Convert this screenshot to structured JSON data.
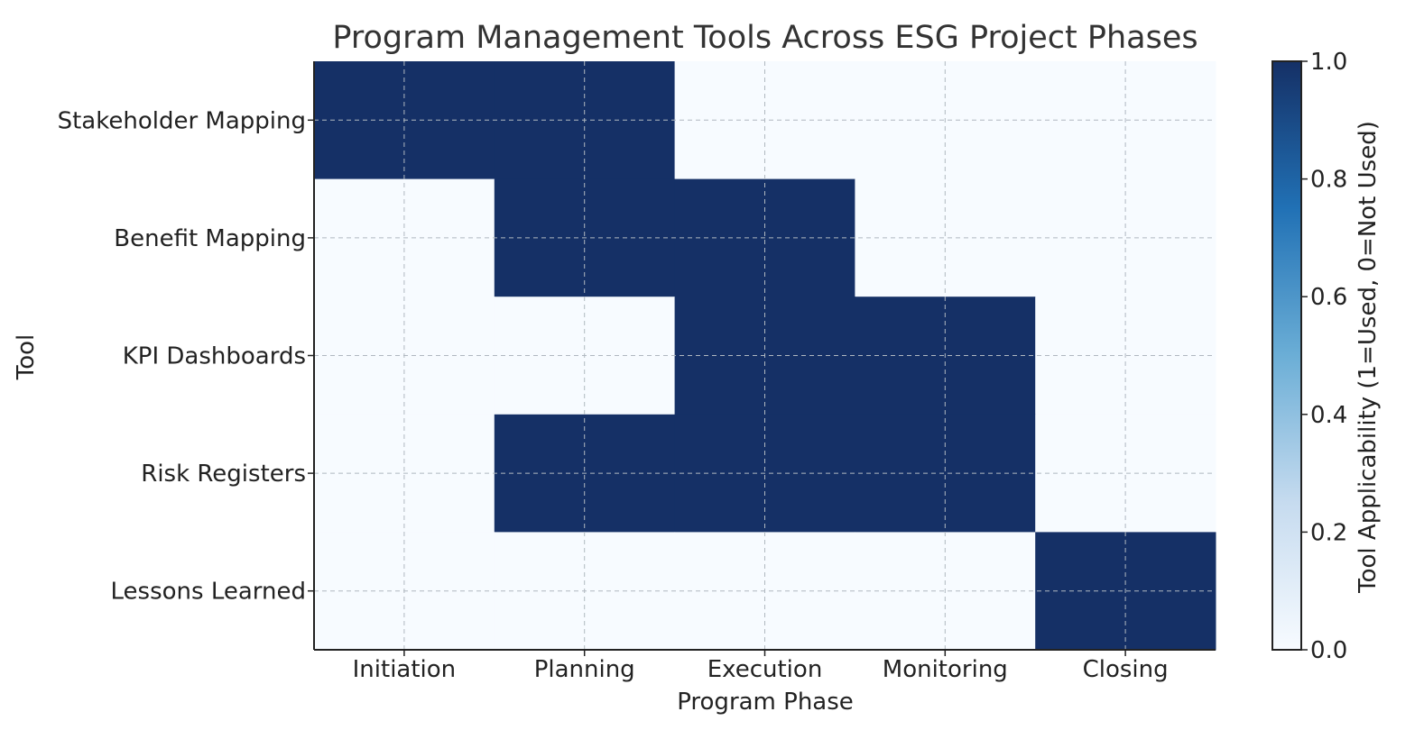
{
  "chart_data": {
    "type": "heatmap",
    "title": "Program Management Tools Across ESG Project Phases",
    "xlabel": "Program Phase",
    "ylabel": "Tool",
    "x_categories": [
      "Initiation",
      "Planning",
      "Execution",
      "Monitoring",
      "Closing"
    ],
    "y_categories": [
      "Stakeholder Mapping",
      "Benefit Mapping",
      "KPI Dashboards",
      "Risk Registers",
      "Lessons Learned"
    ],
    "values": [
      [
        1,
        1,
        0,
        0,
        0
      ],
      [
        0,
        1,
        1,
        0,
        0
      ],
      [
        0,
        0,
        1,
        1,
        0
      ],
      [
        0,
        1,
        1,
        1,
        0
      ],
      [
        0,
        0,
        0,
        0,
        1
      ]
    ],
    "grid": true,
    "colorbar": {
      "label": "Tool Applicability (1=Used, 0=Not Used)",
      "range": [
        0,
        1
      ],
      "ticks": [
        "0.0",
        "0.2",
        "0.4",
        "0.6",
        "0.8",
        "1.0"
      ],
      "colors": [
        "#f7fbff",
        "#c6dbef",
        "#6baed6",
        "#2171b5",
        "#153066"
      ]
    }
  }
}
